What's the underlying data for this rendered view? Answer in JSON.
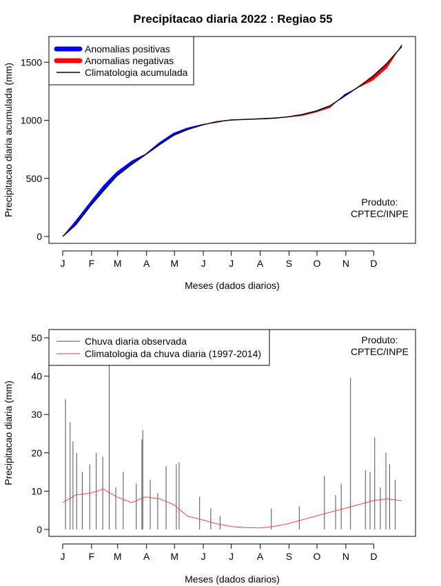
{
  "title": "Precipitacao diaria 2022 : Regiao 55",
  "colors": {
    "positive": "#0000ff",
    "negative": "#ff0000",
    "climatology_cum": "#000000",
    "daily_obs": "#4d4d4d",
    "daily_clim": "#ff2a2a"
  },
  "chart_data": [
    {
      "type": "area",
      "title": "Precipitacao diaria 2022 : Regiao 55",
      "xlabel": "Meses (dados diarios)",
      "ylabel": "Precipitacao diaria acumulada (mm)",
      "x_tick_labels": [
        "J",
        "F",
        "M",
        "A",
        "M",
        "J",
        "J",
        "A",
        "S",
        "O",
        "N",
        "D"
      ],
      "y_ticks": [
        0,
        500,
        1000,
        1500
      ],
      "xlim": [
        1,
        365
      ],
      "ylim": [
        0,
        1650
      ],
      "legend_position": "top-left",
      "legend": [
        "Anomalias positivas",
        "Anomalias negativas",
        "Climatologia acumulada"
      ],
      "annotation": [
        "Produto:",
        "CPTEC/INPE"
      ],
      "x": [
        1,
        15,
        31,
        45,
        59,
        75,
        90,
        105,
        120,
        135,
        151,
        166,
        181,
        197,
        212,
        228,
        243,
        258,
        273,
        288,
        304,
        319,
        334,
        349,
        365
      ],
      "series": [
        {
          "name": "Climatologia acumulada",
          "values": [
            0,
            100,
            265,
            395,
            520,
            620,
            705,
            790,
            870,
            920,
            960,
            988,
            1002,
            1008,
            1012,
            1018,
            1030,
            1050,
            1080,
            1125,
            1210,
            1290,
            1380,
            1490,
            1635
          ]
        },
        {
          "name": "Observado acumulado",
          "values": [
            0,
            135,
            300,
            440,
            555,
            650,
            710,
            810,
            890,
            935,
            965,
            980,
            1005,
            1008,
            1015,
            1022,
            1028,
            1040,
            1070,
            1110,
            1225,
            1285,
            1345,
            1450,
            1650
          ]
        }
      ]
    },
    {
      "type": "line",
      "xlabel": "Meses (dados diarios)",
      "ylabel": "Precipitacao diaria (mm)",
      "x_tick_labels": [
        "J",
        "F",
        "M",
        "A",
        "M",
        "J",
        "J",
        "A",
        "S",
        "O",
        "N",
        "D"
      ],
      "y_ticks": [
        0,
        10,
        20,
        30,
        40,
        50
      ],
      "xlim": [
        1,
        365
      ],
      "ylim": [
        0,
        50
      ],
      "legend_position": "top-left",
      "legend": [
        "Chuva diaria observada",
        "Climatologia da chuva diaria (1997-2014)"
      ],
      "annotation": [
        "Produto:",
        "CPTEC/INPE"
      ],
      "climatology_anchors": {
        "x": [
          1,
          15,
          31,
          45,
          59,
          75,
          90,
          105,
          120,
          135,
          151,
          166,
          181,
          197,
          212,
          228,
          243,
          258,
          273,
          288,
          304,
          319,
          334,
          349,
          365
        ],
        "y": [
          7,
          9,
          9.5,
          10.5,
          8.5,
          7,
          8.5,
          8,
          6.5,
          3.5,
          2.5,
          1.5,
          0.8,
          0.5,
          0.4,
          0.8,
          1.5,
          2.5,
          3.5,
          4.5,
          5.5,
          6.5,
          7.5,
          8,
          7.5
        ]
      },
      "observed_peaks": [
        {
          "x": 4,
          "y": 34
        },
        {
          "x": 9,
          "y": 28
        },
        {
          "x": 12,
          "y": 23
        },
        {
          "x": 16,
          "y": 20
        },
        {
          "x": 22,
          "y": 15
        },
        {
          "x": 30,
          "y": 17
        },
        {
          "x": 37,
          "y": 20
        },
        {
          "x": 44,
          "y": 19
        },
        {
          "x": 51,
          "y": 43
        },
        {
          "x": 58,
          "y": 11
        },
        {
          "x": 66,
          "y": 15
        },
        {
          "x": 80,
          "y": 12
        },
        {
          "x": 86,
          "y": 23.5
        },
        {
          "x": 87,
          "y": 26
        },
        {
          "x": 95,
          "y": 13
        },
        {
          "x": 103,
          "y": 9.5
        },
        {
          "x": 112,
          "y": 16.5
        },
        {
          "x": 123,
          "y": 17
        },
        {
          "x": 126,
          "y": 17.5
        },
        {
          "x": 148,
          "y": 8.5
        },
        {
          "x": 160,
          "y": 5.5
        },
        {
          "x": 170,
          "y": 3.5
        },
        {
          "x": 225,
          "y": 5.5
        },
        {
          "x": 255,
          "y": 6
        },
        {
          "x": 282,
          "y": 14
        },
        {
          "x": 294,
          "y": 9
        },
        {
          "x": 300,
          "y": 12
        },
        {
          "x": 310,
          "y": 39.5
        },
        {
          "x": 326,
          "y": 15.5
        },
        {
          "x": 331,
          "y": 15
        },
        {
          "x": 336,
          "y": 24
        },
        {
          "x": 342,
          "y": 11
        },
        {
          "x": 348,
          "y": 20
        },
        {
          "x": 352,
          "y": 17
        },
        {
          "x": 358,
          "y": 13
        }
      ]
    }
  ]
}
